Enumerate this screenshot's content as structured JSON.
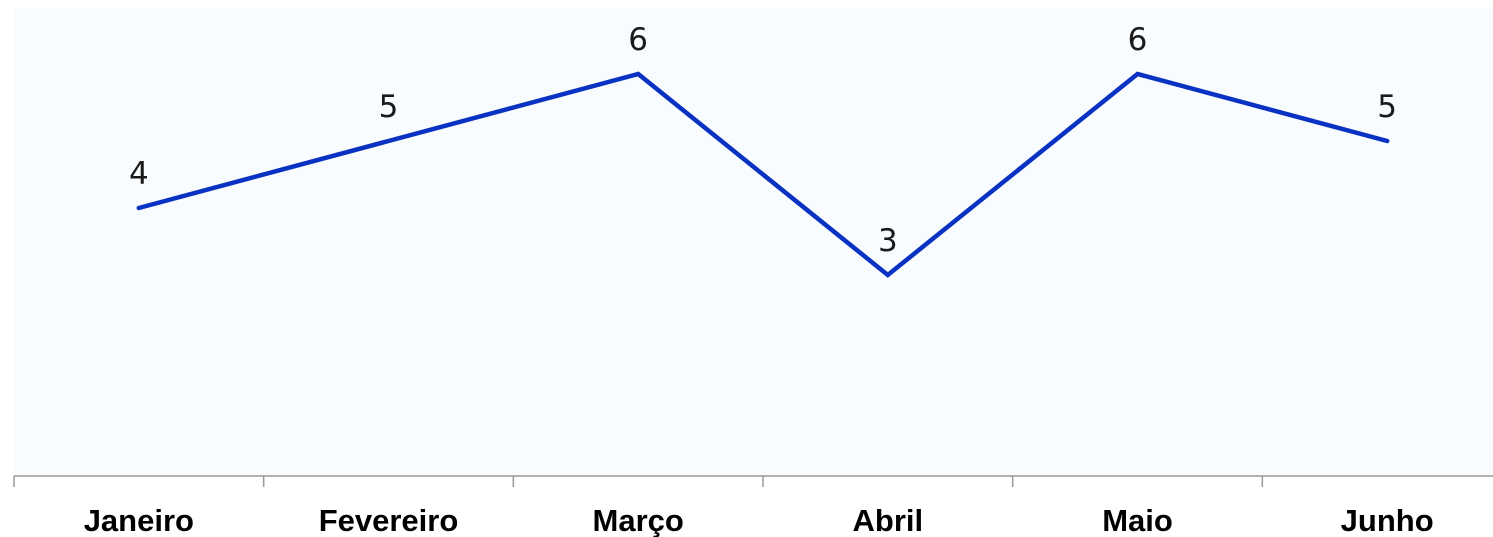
{
  "chart_data": {
    "type": "line",
    "title": "",
    "xlabel": "",
    "ylabel": "",
    "categories": [
      "Janeiro",
      "Fevereiro",
      "Março",
      "Abril",
      "Maio",
      "Junho"
    ],
    "series": [
      {
        "values": [
          4,
          5,
          6,
          3,
          6,
          5
        ],
        "color": "#0a32c2"
      }
    ],
    "ylim": [
      0,
      7
    ],
    "grid": false,
    "legend": "none",
    "data_labels": true
  }
}
